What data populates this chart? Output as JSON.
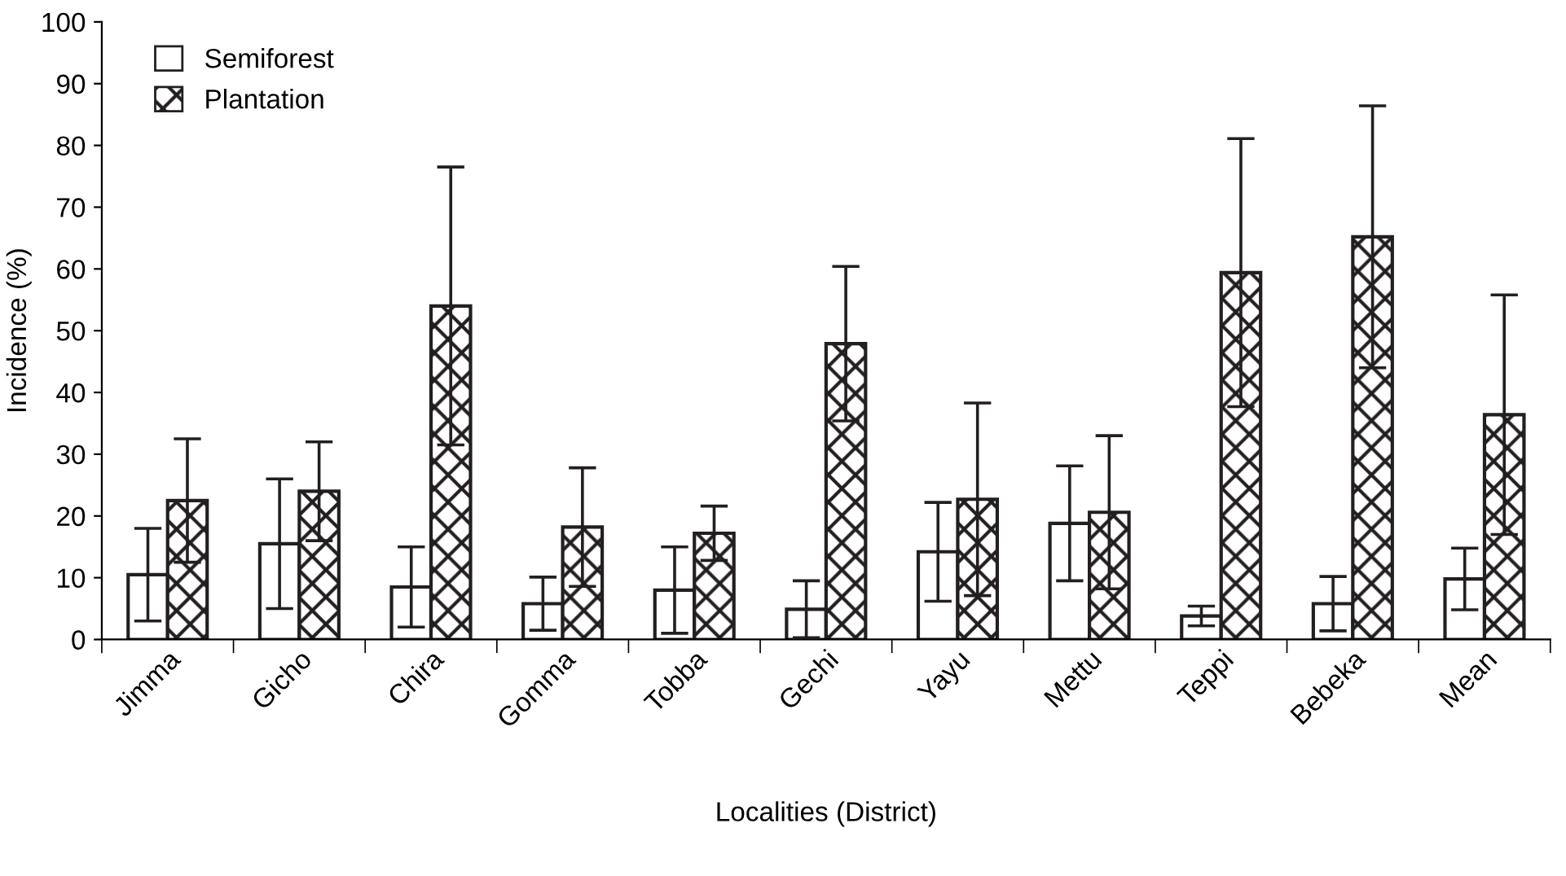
{
  "chart_data": {
    "type": "bar",
    "xlabel": "Localities (District)",
    "ylabel": "Incidence (%)",
    "categories": [
      "Jimma",
      "Gicho",
      "Chira",
      "Gomma",
      "Tobba",
      "Gechi",
      "Yayu",
      "Mettu",
      "Teppi",
      "Bebeka",
      "Mean"
    ],
    "series": [
      {
        "name": "Semiforest",
        "color": "#ffffff",
        "values": [
          10.5,
          15.5,
          8.5,
          5.8,
          8,
          4.9,
          14.2,
          18.8,
          3.8,
          5.8,
          9.8
        ],
        "errors": [
          7.5,
          10.5,
          6.5,
          4.3,
          7,
          4.6,
          8,
          9.3,
          1.6,
          4.4,
          5
        ]
      },
      {
        "name": "Plantation",
        "color": "#231f20",
        "values": [
          22.5,
          24,
          54,
          18.2,
          17.2,
          47.9,
          22.7,
          20.6,
          59.4,
          65.2,
          36.4
        ],
        "errors": [
          10,
          8,
          22.5,
          9.6,
          4.4,
          12.5,
          15.6,
          12.4,
          21.7,
          21.2,
          19.4
        ]
      }
    ],
    "ylim": [
      0,
      100
    ],
    "yticks": [
      0,
      10,
      20,
      30,
      40,
      50,
      60,
      70,
      80,
      90,
      100
    ],
    "grid": false,
    "legend": "top left"
  }
}
